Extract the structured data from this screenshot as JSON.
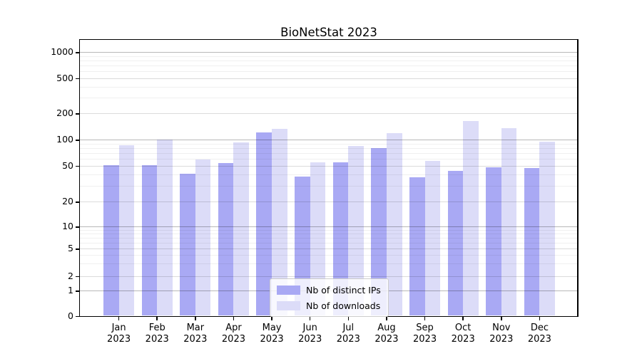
{
  "title": "BioNetStat 2023",
  "colors": {
    "distinct_ips_bar": "#a9a9f4",
    "downloads_bar": "#dcdcf8",
    "grid_major": "rgba(0,0,0,0.28)",
    "grid_mid": "rgba(0,0,0,0.14)",
    "grid_minor": "rgba(0,0,0,0.06)"
  },
  "legend": {
    "items": [
      {
        "label": "Nb of distinct IPs",
        "color": "#a9a9f4"
      },
      {
        "label": "Nb of downloads",
        "color": "#dcdcf8"
      }
    ]
  },
  "chart_data": {
    "type": "bar",
    "title": "BioNetStat 2023",
    "categories": [
      "Jan 2023",
      "Feb 2023",
      "Mar 2023",
      "Apr 2023",
      "May 2023",
      "Jun 2023",
      "Jul 2023",
      "Aug 2023",
      "Sep 2023",
      "Oct 2023",
      "Nov 2023",
      "Dec 2023"
    ],
    "series": [
      {
        "name": "Nb of distinct IPs",
        "color": "#a9a9f4",
        "values": [
          51,
          51,
          41,
          54,
          121,
          38,
          55,
          80,
          37,
          44,
          48,
          47
        ]
      },
      {
        "name": "Nb of downloads",
        "color": "#dcdcf8",
        "values": [
          87,
          100,
          59,
          94,
          134,
          55,
          85,
          118,
          57,
          164,
          135,
          95
        ]
      }
    ],
    "xlabel": "",
    "ylabel": "",
    "yscale": "symlog",
    "yticks": [
      0,
      1,
      2,
      5,
      10,
      20,
      50,
      100,
      200,
      500,
      1000
    ],
    "ylim": [
      0,
      1400
    ],
    "grid": "horizontal major + minor, drawn over bars",
    "legend_position": "lower center"
  }
}
